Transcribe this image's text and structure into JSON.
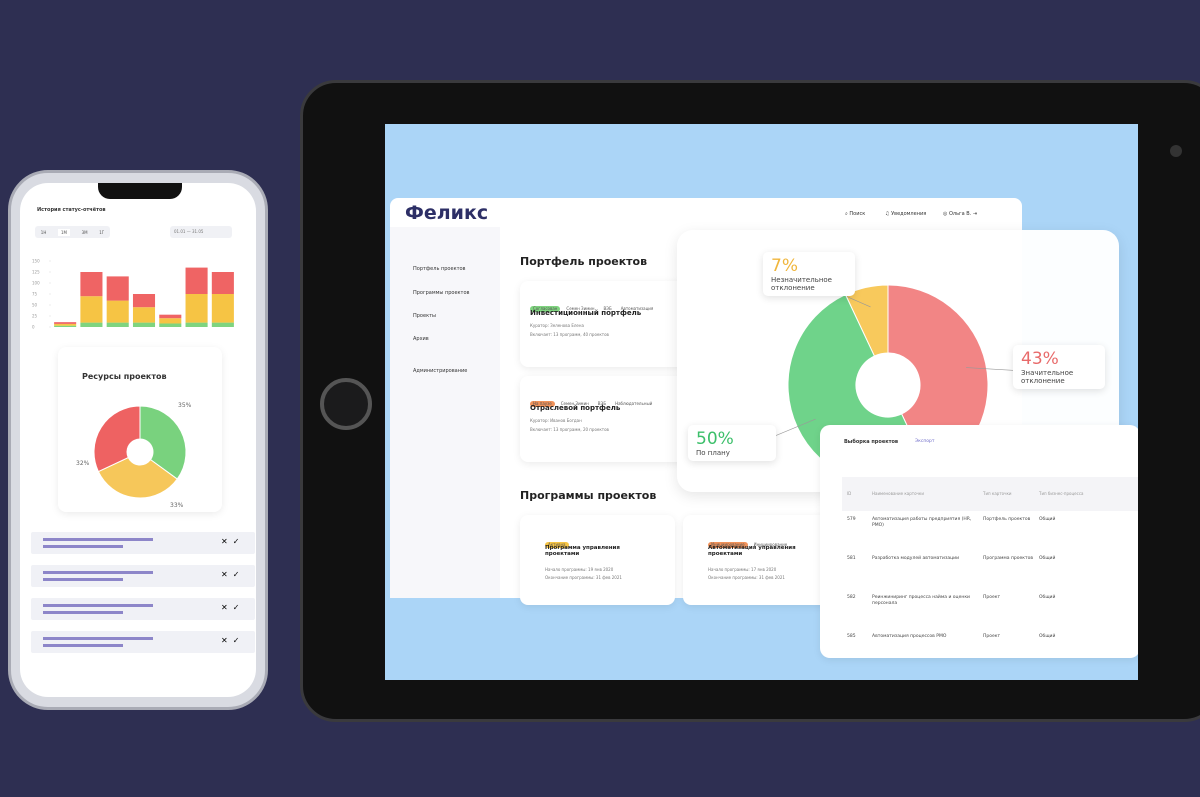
{
  "phone": {
    "title": "История статус-отчётов",
    "periods": [
      "1Н",
      "1М",
      "3М",
      "1Г"
    ],
    "date_range": "01.01 — 31.05"
  },
  "tablet": {
    "brand": "Феликс",
    "nav": [
      "Поиск",
      "Уведомления",
      "Ольга В."
    ],
    "sidebar": [
      "Портфель проектов",
      "Программы проектов",
      "Проекты",
      "Архив",
      "Администрирование"
    ],
    "portfolio": {
      "heading": "Портфель проектов",
      "cards": [
        {
          "tags": [
            "Согласован",
            "Семен Зимин",
            "ВЭБ",
            "Автоматизация"
          ],
          "title": "Инвестиционный портфель",
          "curator": "Куратор: Зеленова Елена",
          "includes": "Включает: 13 программ, 40 проектов"
        },
        {
          "tags": [
            "На паузе",
            "Семен Зимин",
            "ВЭБ",
            "Наблюдательный"
          ],
          "title": "Отраслевой портфель",
          "curator": "Куратор: Иванов Богдан",
          "includes": "Включает: 13 программ, 20 проектов"
        }
      ]
    },
    "programs": {
      "heading": "Программы проектов",
      "cards": [
        {
          "tags": [
            "Активна"
          ],
          "title": "Программа управления проектами",
          "start": "Начало программы: 19 янв 2020",
          "end": "Окончание программы: 31 фев 2021"
        },
        {
          "tags": [
            "Инициирование",
            "Инициирование"
          ],
          "title": "Автоматизация управления проектами",
          "start": "Начало программы: 17 янв 2020",
          "end": "Окончание программы: 31 фев 2021"
        }
      ]
    },
    "table": {
      "title": "Выборка проектов",
      "action": "Экспорт",
      "columns": [
        "ID",
        "Наименование карточки",
        "Тип карточки",
        "Тип бизнес-процесса"
      ],
      "rows": [
        [
          "579",
          "Автоматизация работы предприятия (HR, PMO)",
          "Портфель проектов",
          "Общий"
        ],
        [
          "581",
          "Разработка модулей автоматизации",
          "Программа проектов",
          "Общий"
        ],
        [
          "582",
          "Реинжиниринг процесса найма и оценки персонала",
          "Проект",
          "Общий"
        ],
        [
          "585",
          "Автоматизация процессов PMO",
          "Проект",
          "Общий"
        ]
      ]
    }
  },
  "chart_data": [
    {
      "type": "bar",
      "stacked": true,
      "ylim": [
        0,
        150
      ],
      "yticks": [
        0,
        25,
        50,
        75,
        100,
        125,
        150
      ],
      "grid": false,
      "series": [
        {
          "color": "#7fd47f",
          "values": [
            3,
            10,
            10,
            10,
            8,
            10,
            10
          ]
        },
        {
          "color": "#f6c444",
          "values": [
            4,
            60,
            50,
            35,
            12,
            65,
            65
          ]
        },
        {
          "color": "#ef6464",
          "values": [
            4,
            55,
            55,
            30,
            8,
            60,
            50
          ]
        }
      ]
    },
    {
      "type": "pie",
      "title": "Ресурсы проектов",
      "values": [
        35,
        33,
        32
      ],
      "value_labels": [
        "35%",
        "33%",
        "32%"
      ],
      "colors": [
        "#79d27e",
        "#f6c75a",
        "#ee6262"
      ]
    },
    {
      "type": "pie",
      "categories": [
        "Незначительное отклонение",
        "Значительное отклонение",
        "По плану"
      ],
      "values": [
        7,
        43,
        50
      ],
      "value_labels": [
        "7%",
        "43%",
        "50%"
      ],
      "colors": [
        "#f8c95c",
        "#f28585",
        "#6fd38a"
      ]
    }
  ]
}
